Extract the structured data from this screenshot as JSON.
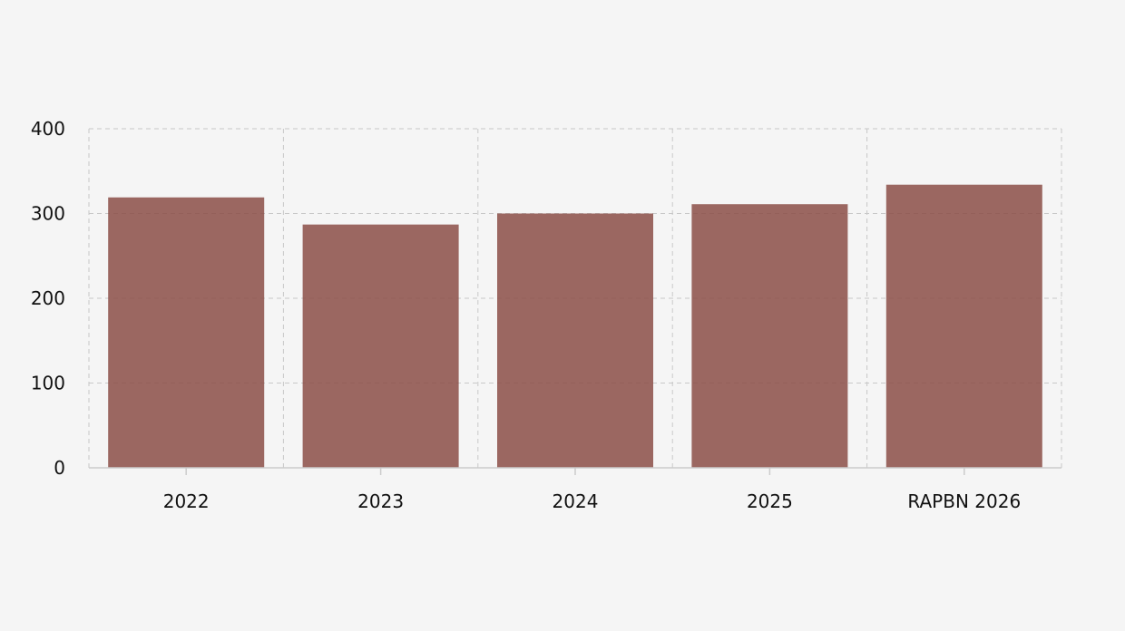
{
  "chart_data": {
    "type": "bar",
    "title": "",
    "xlabel": "",
    "ylabel": "",
    "categories": [
      "2022",
      "2023",
      "2024",
      "2025",
      "RAPBN 2026"
    ],
    "values": [
      319,
      287,
      300,
      311,
      334
    ],
    "ylim": [
      0,
      400
    ],
    "yticks": [
      0,
      100,
      200,
      300,
      400
    ],
    "grid": true,
    "legend": "none",
    "colors": {
      "bar": "#8b4e47",
      "bar_opacity": 0.85,
      "grid": "#c8c8c8",
      "axis": "#cccccc",
      "text": "#111111"
    }
  }
}
